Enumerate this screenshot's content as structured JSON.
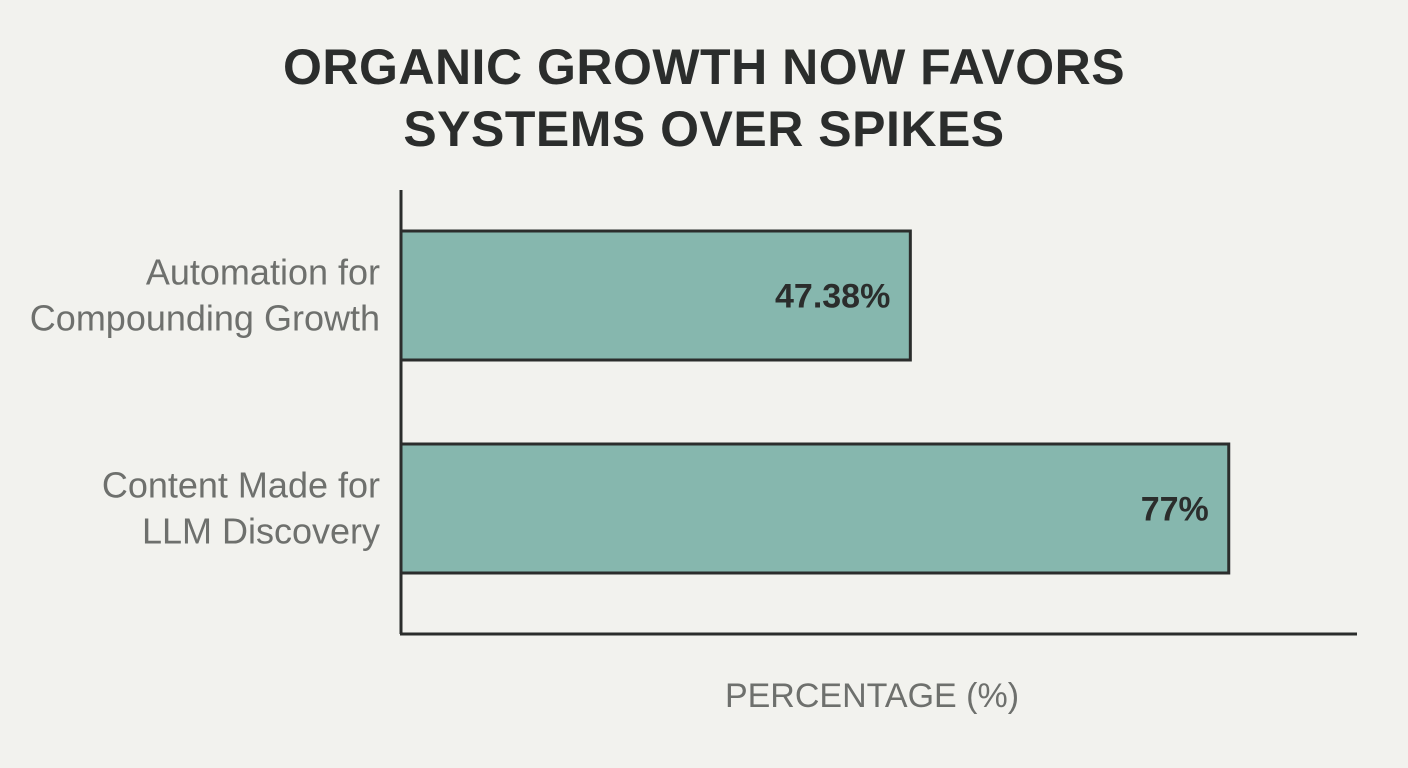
{
  "chart_data": {
    "type": "bar",
    "orientation": "horizontal",
    "title_lines": [
      "ORGANIC GROWTH NOW FAVORS",
      "SYSTEMS OVER SPIKES"
    ],
    "categories": [
      [
        "Automation for",
        "Compounding Growth"
      ],
      [
        "Content Made for",
        "LLM Discovery"
      ]
    ],
    "values": [
      47.38,
      77
    ],
    "value_labels": [
      "47.38%",
      "77%"
    ],
    "xlabel": "PERCENTAGE (%)",
    "ylabel": "",
    "xlim": [
      0,
      100
    ],
    "grid": false,
    "bar_color": "#86b7ae",
    "bar_stroke": "#2b2d2c"
  }
}
